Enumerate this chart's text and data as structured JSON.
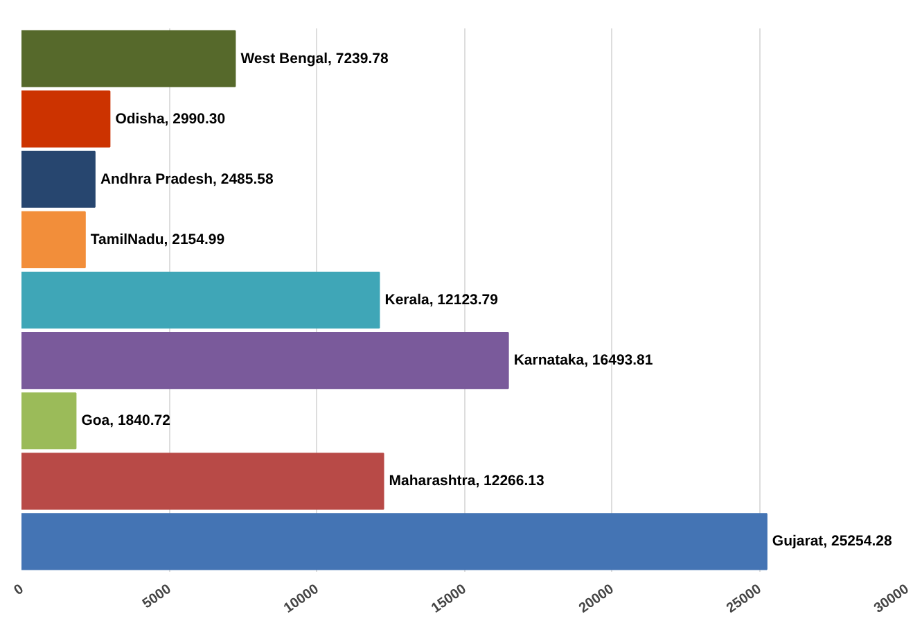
{
  "chart_data": {
    "type": "bar",
    "orientation": "horizontal",
    "categories": [
      null,
      null,
      null,
      null,
      null,
      null,
      null,
      null,
      null
    ],
    "values": [
      7239.78,
      2990.3,
      2485.58,
      2154.99,
      12123.79,
      16493.81,
      1840.72,
      12266.13,
      25254.28
    ],
    "colors": [
      "#56692b",
      "#cc3300",
      "#27466f",
      "#f28e3a",
      "#3fa6b7",
      "#7a5a9b",
      "#9bbb59",
      "#b84a47",
      "#4474b4"
    ],
    "value_labels": [
      "West Bengal, 7239.78",
      "Odisha, 2990.30",
      "Andhra Pradesh, 2485.58",
      "TamilNadu, 2154.99",
      "Kerala, 12123.79",
      "Karnataka, 16493.81",
      "Goa, 1840.72",
      "Maharashtra, 12266.13",
      "Gujarat, 25254.28"
    ],
    "xlim": [
      0,
      30000
    ],
    "xticks": [
      0,
      5000,
      10000,
      15000,
      20000,
      25000,
      30000
    ],
    "grid": "x",
    "tick_labels": "x"
  }
}
